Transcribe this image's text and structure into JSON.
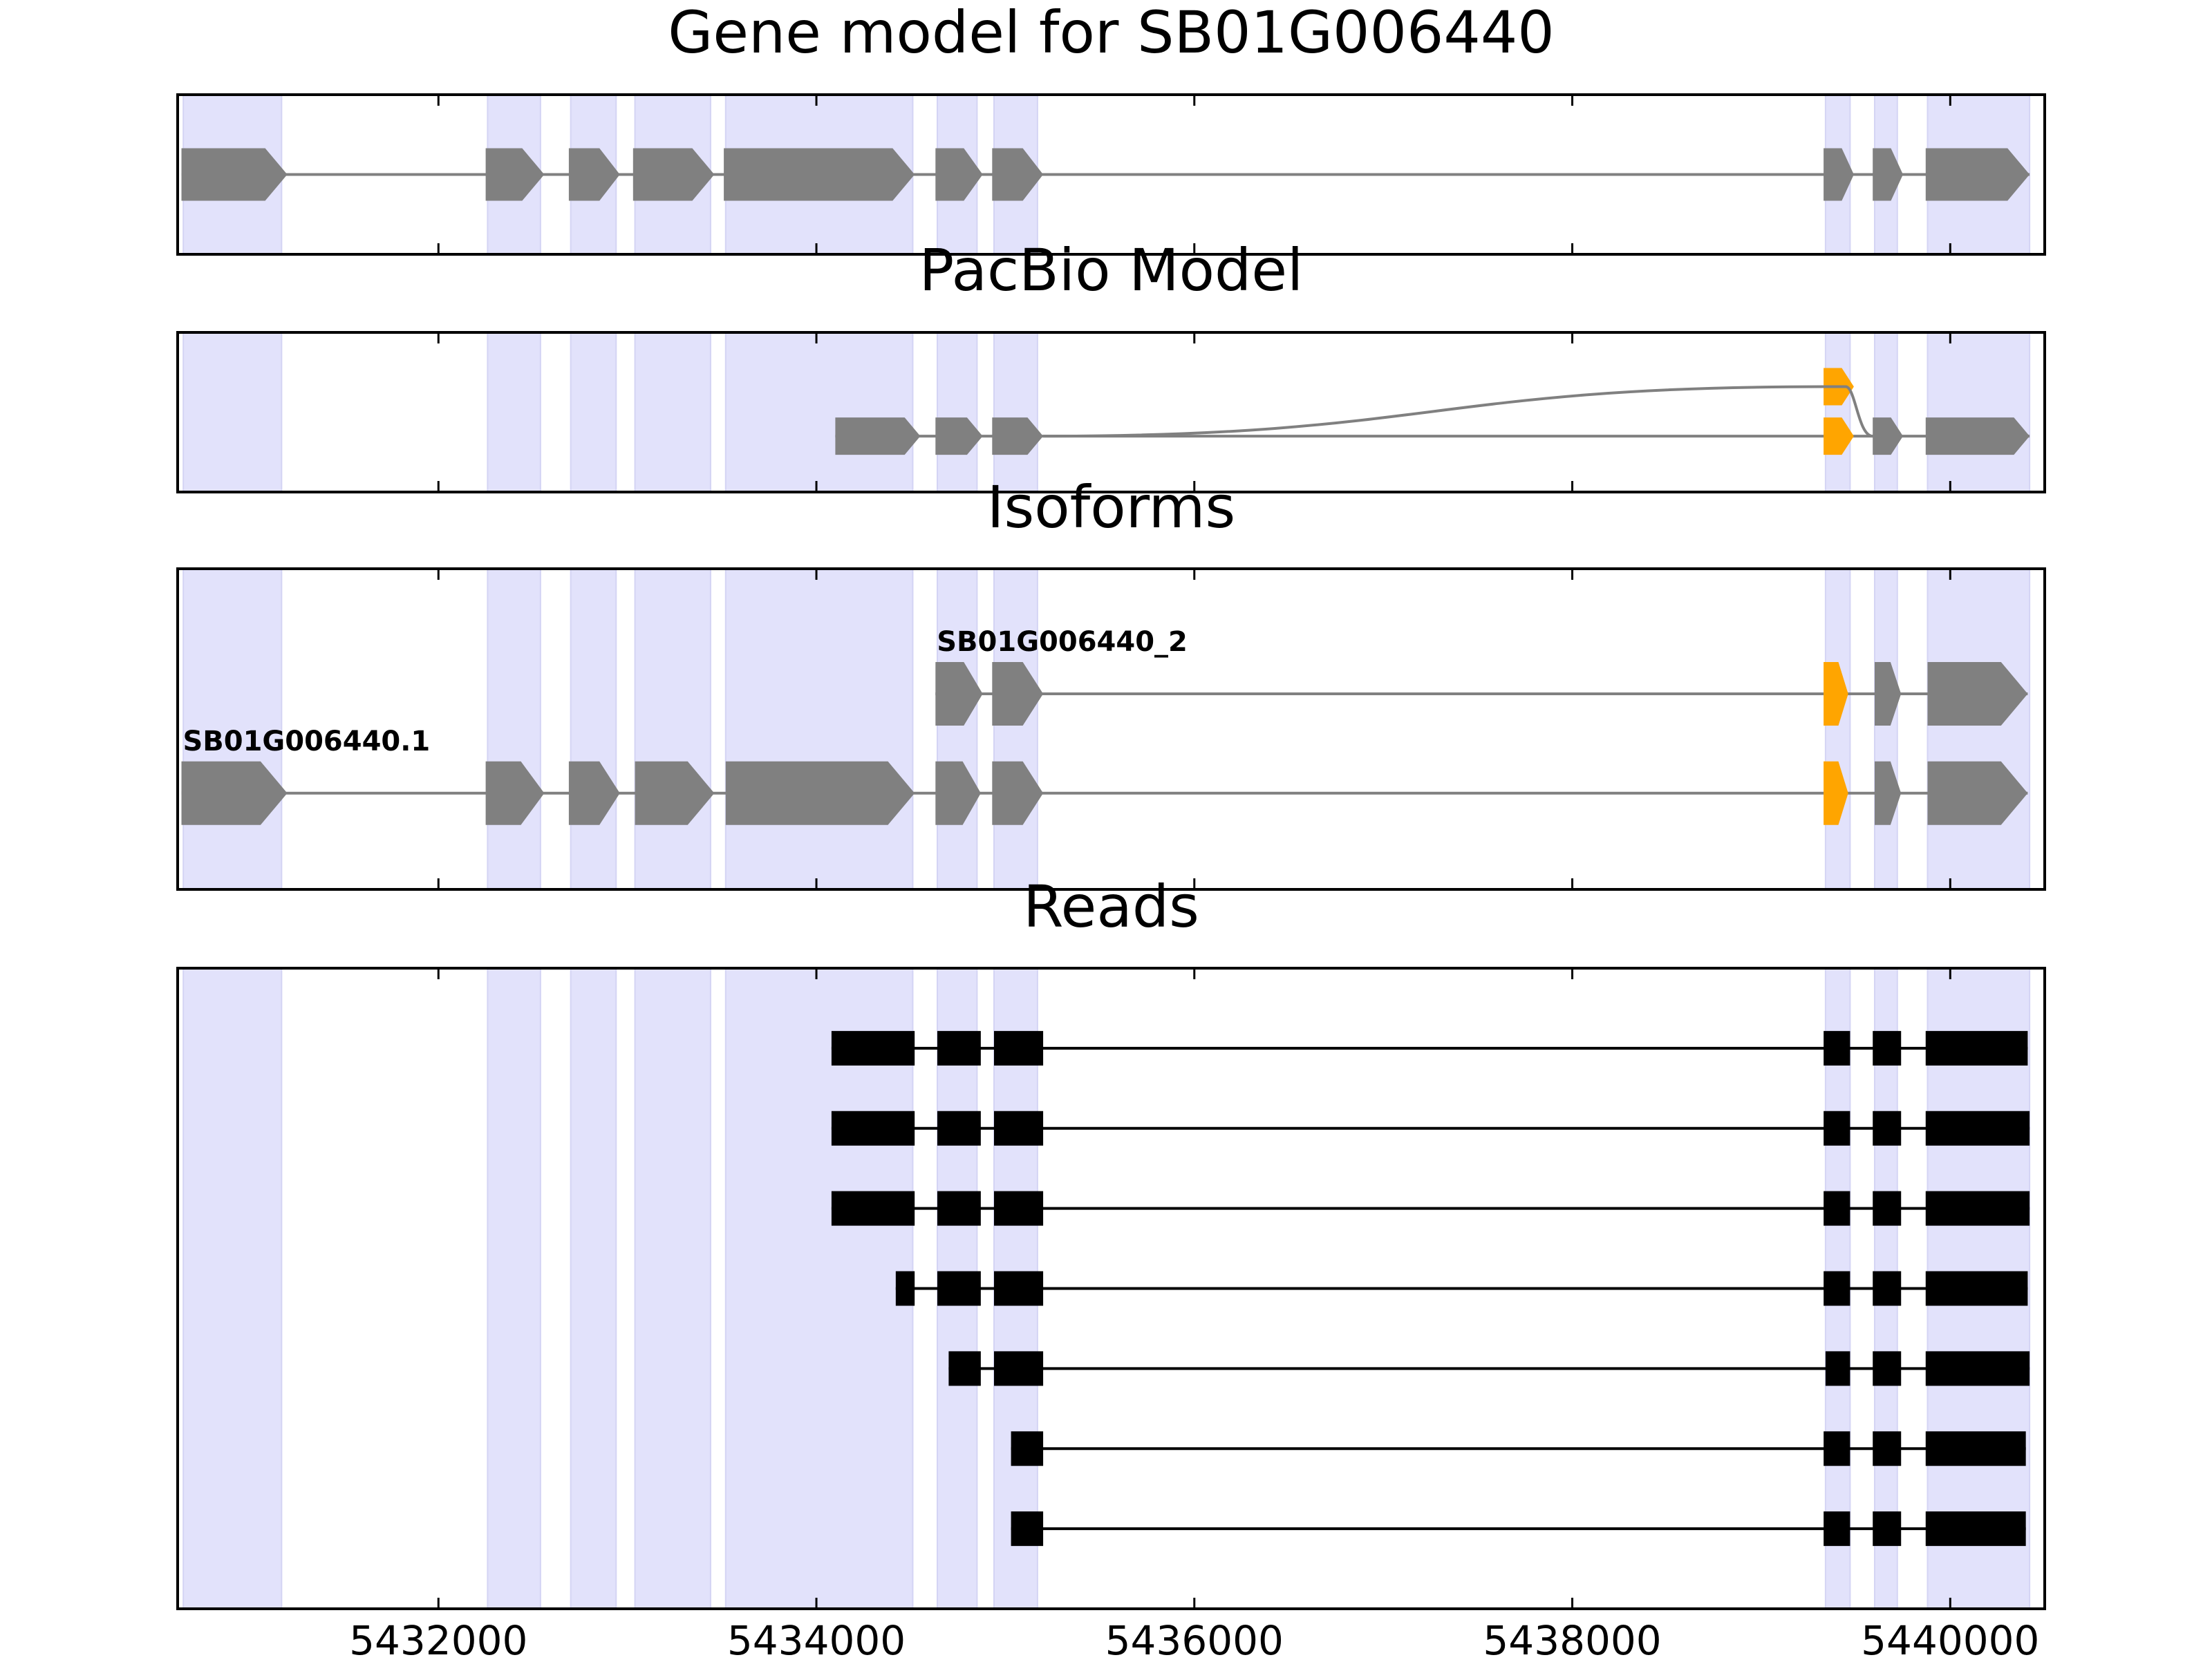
{
  "chart_data": {
    "type": "gene-structure",
    "xlim": [
      5430620,
      5440500
    ],
    "x_ticks": [
      5432000,
      5434000,
      5436000,
      5438000,
      5440000
    ],
    "x_tick_labels": [
      "5432000",
      "5434000",
      "5436000",
      "5438000",
      "5440000"
    ],
    "colors": {
      "exon": "#808080",
      "intron": "#808080",
      "highlight_exon": "#ffa500",
      "read": "#000000",
      "exon_band": "#e2e2fb"
    },
    "exon_bands": [
      [
        5430650,
        5431170
      ],
      [
        5432260,
        5432540
      ],
      [
        5432700,
        5432940
      ],
      [
        5433040,
        5433440
      ],
      [
        5433520,
        5434510
      ],
      [
        5434640,
        5434850
      ],
      [
        5434940,
        5435170
      ],
      [
        5439340,
        5439470
      ],
      [
        5439600,
        5439720
      ],
      [
        5439880,
        5440420
      ]
    ],
    "panels": [
      {
        "title": "Gene model for SB01G006440",
        "kind": "gene",
        "ylim": [
          0,
          1
        ],
        "tracks": [
          {
            "label": "",
            "y": 0.5,
            "exons": [
              [
                5430640,
                5431200
              ],
              [
                5432250,
                5432560
              ],
              [
                5432690,
                5432960
              ],
              [
                5433030,
                5433460
              ],
              [
                5433510,
                5434520
              ],
              [
                5434630,
                5434880
              ],
              [
                5434930,
                5435200
              ],
              [
                5439330,
                5439490
              ],
              [
                5439590,
                5439750
              ],
              [
                5439870,
                5440420
              ]
            ],
            "highlight": []
          }
        ]
      },
      {
        "title": "PacBio Model",
        "kind": "pacbio",
        "ylim": [
          0,
          1
        ],
        "tracks": [
          {
            "label": "",
            "y": 0.35,
            "exons": [
              [
                5434100,
                5434550
              ],
              [
                5434630,
                5434880
              ],
              [
                5434930,
                5435200
              ],
              [
                5439330,
                5439490
              ],
              [
                5439590,
                5439750
              ],
              [
                5439870,
                5440420
              ]
            ],
            "highlight": [
              3
            ]
          },
          {
            "label": "",
            "y": 0.66,
            "exons": [
              [
                5439330,
                5439490
              ]
            ],
            "highlight": [
              0
            ]
          }
        ],
        "curve": {
          "from_x": 5435200,
          "from_y": 0.35,
          "to_x": 5439330,
          "to_y": 0.66,
          "end_x": 5439590,
          "end_y": 0.35
        }
      },
      {
        "title": "Isoforms",
        "kind": "isoforms",
        "ylim": [
          0,
          1
        ],
        "tracks": [
          {
            "label": "SB01G006440_2",
            "y": 0.61,
            "exons": [
              [
                5434630,
                5434880
              ],
              [
                5434930,
                5435200
              ],
              [
                5439330,
                5439460
              ],
              [
                5439600,
                5439740
              ],
              [
                5439880,
                5440410
              ]
            ],
            "highlight": [
              2
            ]
          },
          {
            "label": "SB01G006440.1",
            "y": 0.3,
            "exons": [
              [
                5430640,
                5431200
              ],
              [
                5432250,
                5432560
              ],
              [
                5432690,
                5432960
              ],
              [
                5433040,
                5433460
              ],
              [
                5433520,
                5434520
              ],
              [
                5434630,
                5434870
              ],
              [
                5434930,
                5435200
              ],
              [
                5439330,
                5439460
              ],
              [
                5439600,
                5439740
              ],
              [
                5439880,
                5440410
              ]
            ],
            "highlight": [
              7
            ]
          }
        ]
      },
      {
        "title": "Reads",
        "kind": "reads",
        "ylim": [
          0,
          8
        ],
        "tracks": [
          {
            "y": 7,
            "exons": [
              [
                5434080,
                5434520
              ],
              [
                5434640,
                5434870
              ],
              [
                5434940,
                5435200
              ],
              [
                5439330,
                5439470
              ],
              [
                5439590,
                5439740
              ],
              [
                5439870,
                5440410
              ]
            ]
          },
          {
            "y": 6,
            "exons": [
              [
                5434080,
                5434520
              ],
              [
                5434640,
                5434870
              ],
              [
                5434940,
                5435200
              ],
              [
                5439330,
                5439470
              ],
              [
                5439590,
                5439740
              ],
              [
                5439870,
                5440420
              ]
            ]
          },
          {
            "y": 5,
            "exons": [
              [
                5434080,
                5434520
              ],
              [
                5434640,
                5434870
              ],
              [
                5434940,
                5435200
              ],
              [
                5439330,
                5439470
              ],
              [
                5439590,
                5439740
              ],
              [
                5439870,
                5440420
              ]
            ]
          },
          {
            "y": 4,
            "exons": [
              [
                5434420,
                5434520
              ],
              [
                5434640,
                5434870
              ],
              [
                5434940,
                5435200
              ],
              [
                5439330,
                5439470
              ],
              [
                5439590,
                5439740
              ],
              [
                5439870,
                5440410
              ]
            ]
          },
          {
            "y": 3,
            "exons": [
              [
                5434700,
                5434870
              ],
              [
                5434940,
                5435200
              ],
              [
                5439340,
                5439470
              ],
              [
                5439590,
                5439740
              ],
              [
                5439870,
                5440420
              ]
            ]
          },
          {
            "y": 2,
            "exons": [
              [
                5435030,
                5435200
              ],
              [
                5439330,
                5439470
              ],
              [
                5439590,
                5439740
              ],
              [
                5439870,
                5440400
              ]
            ]
          },
          {
            "y": 1,
            "exons": [
              [
                5435030,
                5435200
              ],
              [
                5439330,
                5439470
              ],
              [
                5439590,
                5439740
              ],
              [
                5439870,
                5440400
              ]
            ]
          }
        ]
      }
    ]
  }
}
